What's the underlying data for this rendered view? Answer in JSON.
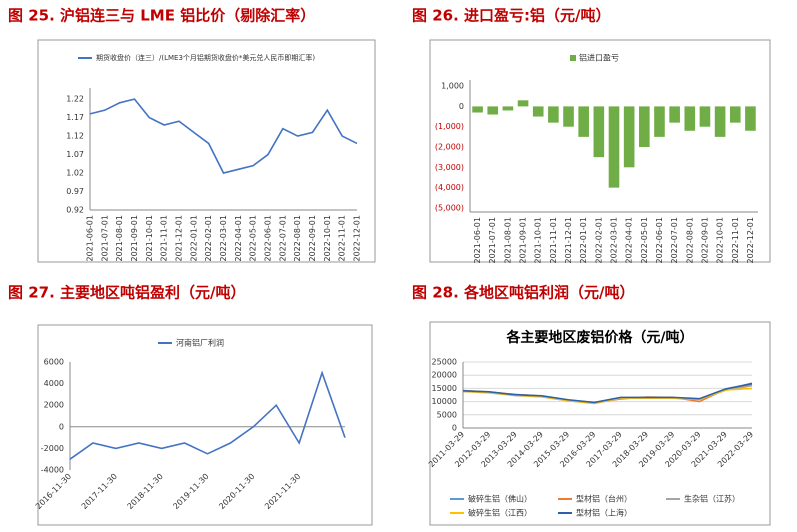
{
  "chart_data": [
    {
      "type": "line",
      "caption": "图 25. 沪铝连三与 LME 铝比价（剔除汇率）",
      "categories": [
        "2021-06-01",
        "2021-07-01",
        "2021-08-01",
        "2021-09-01",
        "2021-10-01",
        "2021-11-01",
        "2021-12-01",
        "2022-01-01",
        "2022-02-01",
        "2022-03-01",
        "2022-04-01",
        "2022-05-01",
        "2022-06-01",
        "2022-07-01",
        "2022-08-01",
        "2022-09-01",
        "2022-10-01",
        "2022-11-01",
        "2022-12-01"
      ],
      "series": [
        {
          "name": "期货收盘价（连三）/(LME3个月铝期货收盘价*美元兑人民币即期汇率)",
          "color": "#4472c4",
          "values": [
            1.18,
            1.19,
            1.21,
            1.22,
            1.17,
            1.15,
            1.16,
            1.13,
            1.1,
            1.02,
            1.03,
            1.04,
            1.07,
            1.14,
            1.12,
            1.13,
            1.19,
            1.12,
            1.1
          ]
        }
      ],
      "ylim": [
        0.92,
        1.25
      ],
      "yticks": [
        0.92,
        0.97,
        1.02,
        1.07,
        1.12,
        1.17,
        1.22
      ],
      "legend": "top"
    },
    {
      "type": "bar",
      "caption": "图 26. 进口盈亏:铝（元/吨）",
      "categories": [
        "2021-06-01",
        "2021-07-01",
        "2021-08-01",
        "2021-09-01",
        "2021-10-01",
        "2021-11-01",
        "2021-12-01",
        "2022-01-01",
        "2022-02-01",
        "2022-03-01",
        "2022-04-01",
        "2022-05-01",
        "2022-06-01",
        "2022-07-01",
        "2022-08-01",
        "2022-09-01",
        "2022-10-01",
        "2022-11-01",
        "2022-12-01"
      ],
      "series": [
        {
          "name": "铝进口盈亏",
          "color": "#70ad47",
          "values": [
            -300,
            -400,
            -200,
            300,
            -500,
            -800,
            -1000,
            -1500,
            -2500,
            -4000,
            -3000,
            -2000,
            -1500,
            -800,
            -1200,
            -1000,
            -1500,
            -800,
            -1200
          ]
        }
      ],
      "ylim": [
        -5200,
        1300
      ],
      "yticks": [
        {
          "value": 1000,
          "label": "1,000"
        },
        0,
        {
          "value": -1000,
          "label": "(1,000)"
        },
        {
          "value": -2000,
          "label": "(2,000)"
        },
        {
          "value": -3000,
          "label": "(3,000)"
        },
        {
          "value": -4000,
          "label": "(4,000)"
        },
        {
          "value": -5000,
          "label": "(5,000)"
        }
      ],
      "negative_tick_color": "#c00000",
      "legend": "top"
    },
    {
      "type": "line",
      "caption": "图 27. 主要地区吨铝盈利（元/吨）",
      "categories": [
        "2016-11-30",
        null,
        "2017-11-30",
        null,
        "2018-11-30",
        null,
        "2019-11-30",
        null,
        "2020-11-30",
        null,
        "2021-11-30",
        null,
        null
      ],
      "series": [
        {
          "name": "河南铝厂利润",
          "color": "#4472c4",
          "values": [
            -3000,
            -1500,
            -2000,
            -1500,
            -2000,
            -1500,
            -2500,
            -1500,
            0,
            2000,
            -1500,
            5000,
            -1000
          ]
        }
      ],
      "ylim": [
        -4000,
        6000
      ],
      "yticks": [
        -4000,
        -2000,
        0,
        2000,
        4000,
        6000
      ],
      "legend": "top"
    },
    {
      "type": "line",
      "caption": "图 28. 各地区吨铝利润（元/吨）",
      "title": "各主要地区废铝价格（元/吨）",
      "categories": [
        "2011-03-29",
        "2012-03-29",
        "2013-03-29",
        "2014-03-29",
        "2015-03-29",
        "2016-03-29",
        "2017-03-29",
        "2018-03-29",
        "2019-03-29",
        "2020-03-29",
        "2021-03-29",
        "2022-03-29"
      ],
      "series": [
        {
          "name": "破碎生铝（佛山）",
          "color": "#5b9bd5",
          "values": [
            14000,
            13500,
            12500,
            12000,
            10500,
            9500,
            11500,
            11500,
            11500,
            11000,
            14500,
            17000
          ]
        },
        {
          "name": "型材铝（台州）",
          "color": "#ed7d31",
          "values": [
            14200,
            13600,
            12700,
            12100,
            10600,
            9600,
            11000,
            11700,
            11600,
            10000,
            14700,
            16500
          ]
        },
        {
          "name": "生杂铝（江苏）",
          "color": "#a5a5a5",
          "values": [
            13800,
            13300,
            12300,
            11800,
            10300,
            9300,
            11300,
            11300,
            11300,
            10800,
            14300,
            16000
          ]
        },
        {
          "name": "破碎生铝（江西）",
          "color": "#ffc000",
          "values": [
            13900,
            13400,
            12400,
            11900,
            10400,
            9400,
            11400,
            11400,
            11400,
            10900,
            14400,
            15000
          ]
        },
        {
          "name": "型材铝（上海）",
          "color": "#2e5fa8",
          "values": [
            14100,
            13700,
            12600,
            12200,
            10700,
            9700,
            11600,
            11600,
            11600,
            11100,
            14800,
            16800
          ]
        }
      ],
      "ylim": [
        0,
        25000
      ],
      "yticks": [
        0,
        5000,
        10000,
        15000,
        20000,
        25000
      ],
      "legend": "bottom"
    }
  ]
}
